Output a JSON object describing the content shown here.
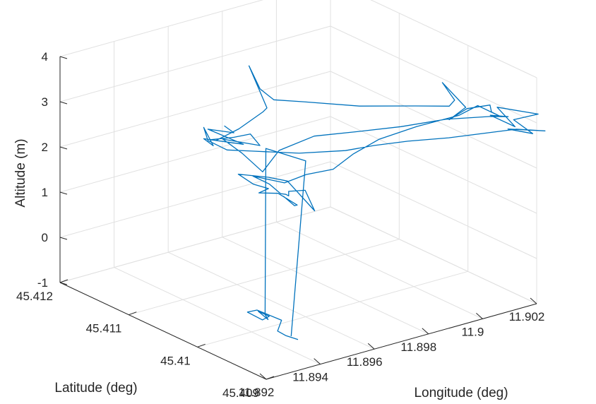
{
  "chart_data": {
    "type": "line3d",
    "title": "",
    "xlabel": "Longitude (deg)",
    "ylabel": "Latitude (deg)",
    "zlabel": "Altitude (m)",
    "xlim": [
      11.892,
      11.902
    ],
    "ylim": [
      45.409,
      45.412
    ],
    "zlim": [
      -1,
      4
    ],
    "xticks": [
      "11.892",
      "11.894",
      "11.896",
      "11.898",
      "11.9",
      "11.902"
    ],
    "yticks": [
      "45.409",
      "45.41",
      "45.411",
      "45.412"
    ],
    "zticks": [
      "-1",
      "0",
      "1",
      "2",
      "3",
      "4"
    ],
    "grid": true,
    "series_color": "#0072BD",
    "series": [
      {
        "x": [
          11.8935,
          11.8936,
          11.8934,
          11.8937,
          11.8935,
          11.8936,
          11.8937,
          11.8938,
          11.8937,
          11.8939,
          11.8939,
          11.894,
          11.8953,
          11.8966,
          11.898,
          11.8994,
          11.9008,
          11.9012,
          11.9013,
          11.9012,
          11.9013,
          11.9018,
          11.9014,
          11.9016,
          11.9017,
          11.9018,
          11.901,
          11.9,
          11.899,
          11.898,
          11.897,
          11.8962,
          11.895,
          11.894,
          11.8936,
          11.8934,
          11.8935,
          11.8936,
          11.8935,
          11.8937,
          11.8948,
          11.8962,
          11.8966,
          11.8967,
          11.8966,
          11.8966,
          11.8972,
          11.8985,
          11.8998,
          11.9008,
          11.901,
          11.9008,
          11.9009,
          11.9008,
          11.9012,
          11.9018,
          11.9016,
          11.9017,
          11.9016,
          11.9009,
          11.8996,
          11.8982,
          11.897,
          11.896,
          11.895,
          11.8942,
          11.8938,
          11.8939,
          11.8938,
          11.894,
          11.8941,
          11.8941,
          11.8942,
          11.8943,
          11.8938,
          11.8931,
          11.893,
          11.8933,
          11.8931,
          11.893,
          11.8932,
          11.8934,
          11.8933,
          11.8934
        ],
        "y": [
          45.4102,
          45.4101,
          45.4104,
          45.41,
          45.4104,
          45.4101,
          45.4099,
          45.4098,
          45.4103,
          45.4101,
          45.4098,
          45.4096,
          45.4096,
          45.4095,
          45.4094,
          45.4093,
          45.4092,
          45.4091,
          45.4094,
          45.409,
          45.4093,
          45.4089,
          45.4091,
          45.4089,
          45.4093,
          45.4088,
          45.4089,
          45.409,
          45.4091,
          45.4093,
          45.4094,
          45.4095,
          45.4097,
          45.41,
          45.4102,
          45.4104,
          45.4105,
          45.4104,
          45.4105,
          45.4104,
          45.4105,
          45.4107,
          45.4108,
          45.4111,
          45.4109,
          45.4107,
          45.4105,
          45.4102,
          45.4099,
          45.4098,
          45.4098,
          45.4099,
          45.4096,
          45.4098,
          45.4097,
          45.4096,
          45.4095,
          45.4094,
          45.4097,
          45.4097,
          45.4098,
          45.4098,
          45.4097,
          45.4096,
          45.4096,
          45.4096,
          45.4099,
          45.4097,
          45.4095,
          45.4095,
          45.4095,
          45.4095,
          45.4093,
          45.4092,
          45.4094,
          45.4094,
          45.4098,
          45.4097,
          45.4094,
          45.4095,
          45.4093,
          45.4091,
          45.4091,
          45.4093
        ],
        "z": [
          3.5,
          3.4,
          3.3,
          3.2,
          3.05,
          3.3,
          3.5,
          3.3,
          3.1,
          2.9,
          2.7,
          3.3,
          3.4,
          3.35,
          3.3,
          3.3,
          3.2,
          3.2,
          3.0,
          3.05,
          3.25,
          3.3,
          3.1,
          2.9,
          2.7,
          3.0,
          3.1,
          3.1,
          3.1,
          3.05,
          3.05,
          3.0,
          3.0,
          3.0,
          2.95,
          3.05,
          3.25,
          2.9,
          3.0,
          3.0,
          3.0,
          3.0,
          2.95,
          3.65,
          3.3,
          3.2,
          3.2,
          3.1,
          3.1,
          3.0,
          3.1,
          3.45,
          3.1,
          2.7,
          2.95,
          3.0,
          2.95,
          2.9,
          2.95,
          2.85,
          2.75,
          2.7,
          2.65,
          2.55,
          2.6,
          2.55,
          2.55,
          2.5,
          2.45,
          2.4,
          2.35,
          2.45,
          2.6,
          2.2,
          2.8,
          3.0,
          2.8,
          2.6,
          2.75,
          2.6,
          2.7,
          2.55,
          2.55,
          2.6
        ]
      },
      {
        "x": [
          11.8947,
          11.896,
          11.8958,
          11.8945,
          11.8941,
          11.8945,
          11.8944,
          11.8944,
          11.8941,
          11.8942,
          11.8946,
          11.8942,
          11.8945,
          11.8947
        ],
        "y": [
          45.4097,
          45.41,
          45.4105,
          45.41,
          45.4098,
          45.4101,
          45.4099,
          45.41,
          45.4101,
          45.41,
          45.4098,
          45.4097,
          45.4097,
          45.4096
        ],
        "z": [
          -1.0,
          2.45,
          2.4,
          -0.7,
          -0.6,
          -0.7,
          -0.65,
          -0.8,
          -0.65,
          -0.55,
          -0.7,
          -0.8,
          -0.95,
          -1.0
        ]
      }
    ]
  }
}
